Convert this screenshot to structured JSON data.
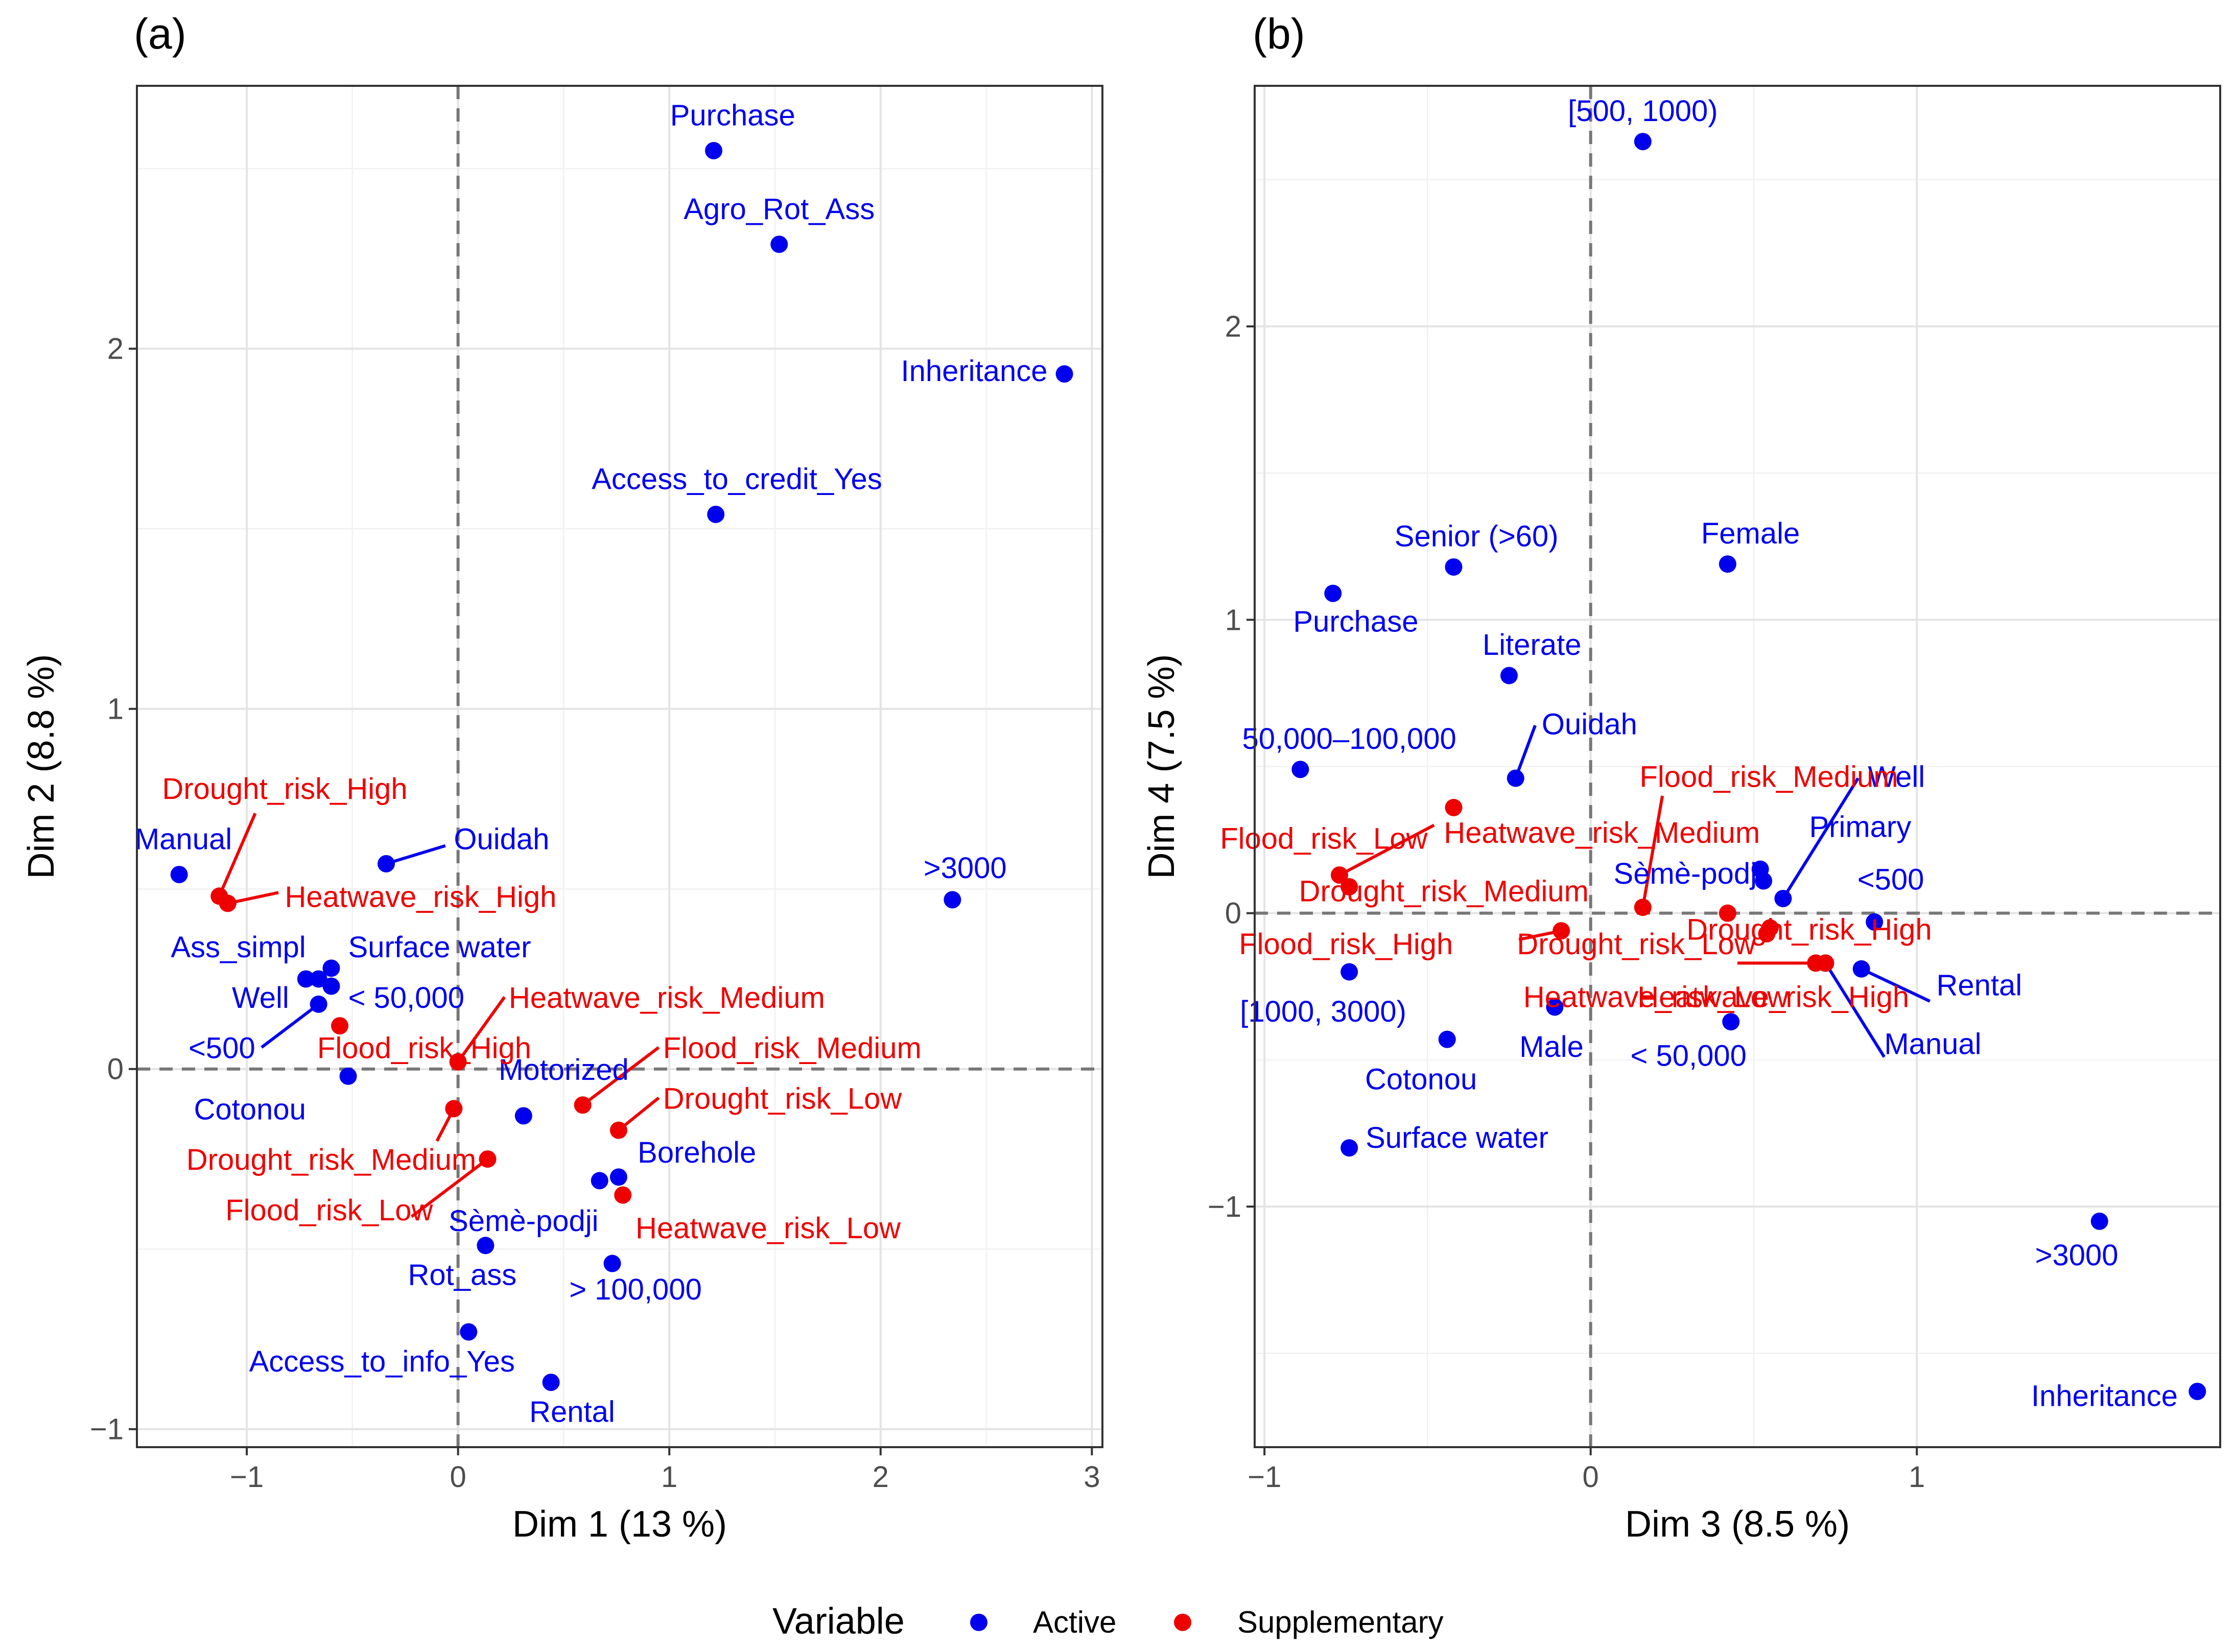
{
  "legend": {
    "title": "Variable",
    "items": [
      {
        "label": "Active",
        "color": "#0000ee"
      },
      {
        "label": "Supplementary",
        "color": "#ee0000"
      }
    ]
  },
  "chart_data": [
    {
      "type": "scatter",
      "tag": "(a)",
      "xlabel": "Dim 1 (13 %)",
      "ylabel": "Dim 2 (8.8 %)",
      "xlim": [
        -1.52,
        3.05
      ],
      "ylim": [
        -1.05,
        2.73
      ],
      "xticks": [
        -1,
        0,
        1,
        2,
        3
      ],
      "yticks": [
        -1,
        0,
        1,
        2
      ],
      "points": [
        {
          "label": "Purchase",
          "x": 1.21,
          "y": 2.55,
          "group": "Active",
          "lx": 1.3,
          "ly": 2.62,
          "anchor": "middle"
        },
        {
          "label": "Agro_Rot_Ass",
          "x": 1.52,
          "y": 2.29,
          "group": "Active",
          "lx": 1.52,
          "ly": 2.36,
          "anchor": "middle"
        },
        {
          "label": "Inheritance",
          "x": 2.87,
          "y": 1.93,
          "group": "Active",
          "lx": 2.79,
          "ly": 1.91,
          "anchor": "end"
        },
        {
          "label": "Access_to_credit_Yes",
          "x": 1.22,
          "y": 1.54,
          "group": "Active",
          "lx": 1.32,
          "ly": 1.61,
          "anchor": "middle"
        },
        {
          "label": "Manual",
          "x": -1.32,
          "y": 0.54,
          "group": "Active",
          "lx": -1.3,
          "ly": 0.61,
          "anchor": "middle"
        },
        {
          "label": "Ouidah",
          "x": -0.34,
          "y": 0.57,
          "group": "Active",
          "lx": -0.02,
          "ly": 0.61,
          "anchor": "start",
          "seg": [
            -0.06,
            0.62
          ]
        },
        {
          "label": ">3000",
          "x": 2.34,
          "y": 0.47,
          "group": "Active",
          "lx": 2.4,
          "ly": 0.53,
          "anchor": "middle"
        },
        {
          "label": "Ass_simpl",
          "x": -0.72,
          "y": 0.25,
          "group": "Active",
          "lx": -1.04,
          "ly": 0.31,
          "anchor": "middle"
        },
        {
          "label": "Surface water",
          "x": -0.6,
          "y": 0.28,
          "group": "Active",
          "lx": -0.52,
          "ly": 0.31,
          "anchor": "start"
        },
        {
          "label": "Well",
          "x": -0.66,
          "y": 0.25,
          "group": "Active",
          "lx": -0.8,
          "ly": 0.17,
          "anchor": "end"
        },
        {
          "label": "< 50,000",
          "x": -0.6,
          "y": 0.23,
          "group": "Active",
          "lx": -0.52,
          "ly": 0.17,
          "anchor": "start"
        },
        {
          "label": "<500",
          "x": -0.66,
          "y": 0.18,
          "group": "Active",
          "lx": -0.96,
          "ly": 0.03,
          "anchor": "end",
          "seg": [
            -0.93,
            0.06
          ]
        },
        {
          "label": "Cotonou",
          "x": -0.52,
          "y": -0.02,
          "group": "Active",
          "lx": -0.72,
          "ly": -0.14,
          "anchor": "end"
        },
        {
          "label": "Motorized",
          "x": 0.31,
          "y": -0.13,
          "group": "Active",
          "lx": 0.5,
          "ly": -0.03,
          "anchor": "middle"
        },
        {
          "label": "Borehole",
          "x": 0.76,
          "y": -0.3,
          "group": "Active",
          "lx": 0.85,
          "ly": -0.26,
          "anchor": "start"
        },
        {
          "label": "Sèmè-podji",
          "x": 0.67,
          "y": -0.31,
          "group": "Active",
          "lx": 0.31,
          "ly": -0.45,
          "anchor": "middle"
        },
        {
          "label": "Rot_ass",
          "x": 0.13,
          "y": -0.49,
          "group": "Active",
          "lx": 0.02,
          "ly": -0.6,
          "anchor": "middle"
        },
        {
          "label": "> 100,000",
          "x": 0.73,
          "y": -0.54,
          "group": "Active",
          "lx": 0.84,
          "ly": -0.64,
          "anchor": "middle"
        },
        {
          "label": "Access_to_info_Yes",
          "x": 0.05,
          "y": -0.73,
          "group": "Active",
          "lx": -0.36,
          "ly": -0.84,
          "anchor": "middle"
        },
        {
          "label": "Rental",
          "x": 0.44,
          "y": -0.87,
          "group": "Active",
          "lx": 0.54,
          "ly": -0.98,
          "anchor": "middle"
        },
        {
          "label": "Drought_risk_High",
          "x": -1.13,
          "y": 0.48,
          "group": "Supplementary",
          "lx": -0.82,
          "ly": 0.75,
          "anchor": "middle",
          "seg": [
            -0.96,
            0.71
          ]
        },
        {
          "label": "Heatwave_risk_High",
          "x": -1.09,
          "y": 0.46,
          "group": "Supplementary",
          "lx": -0.82,
          "ly": 0.45,
          "anchor": "start",
          "seg": [
            -0.85,
            0.49
          ]
        },
        {
          "label": "Heatwave_risk_Medium",
          "x": 0.0,
          "y": 0.02,
          "group": "Supplementary",
          "lx": 0.24,
          "ly": 0.17,
          "anchor": "start",
          "seg": [
            0.22,
            0.2
          ]
        },
        {
          "label": "Flood_risk_High",
          "x": -0.56,
          "y": 0.12,
          "group": "Supplementary",
          "lx": -0.16,
          "ly": 0.03,
          "anchor": "middle"
        },
        {
          "label": "Flood_risk_Medium",
          "x": 0.59,
          "y": -0.1,
          "group": "Supplementary",
          "lx": 0.97,
          "ly": 0.03,
          "anchor": "start",
          "seg": [
            0.95,
            0.06
          ]
        },
        {
          "label": "Drought_risk_Low",
          "x": 0.76,
          "y": -0.17,
          "group": "Supplementary",
          "lx": 0.97,
          "ly": -0.11,
          "anchor": "start",
          "seg": [
            0.95,
            -0.08
          ]
        },
        {
          "label": "Drought_risk_Medium",
          "x": -0.02,
          "y": -0.11,
          "group": "Supplementary",
          "lx": -0.6,
          "ly": -0.28,
          "anchor": "middle",
          "seg": [
            -0.1,
            -0.2
          ]
        },
        {
          "label": "Flood_risk_Low",
          "x": 0.14,
          "y": -0.25,
          "group": "Supplementary",
          "lx": -0.61,
          "ly": -0.42,
          "anchor": "middle",
          "seg": [
            -0.22,
            -0.41
          ]
        },
        {
          "label": "Heatwave_risk_Low",
          "x": 0.78,
          "y": -0.35,
          "group": "Supplementary",
          "lx": 0.84,
          "ly": -0.47,
          "anchor": "start"
        }
      ]
    },
    {
      "type": "scatter",
      "tag": "(b)",
      "xlabel": "Dim 3 (8.5 %)",
      "ylabel": "Dim 4 (7.5 %)",
      "xlim": [
        -1.03,
        1.93
      ],
      "ylim": [
        -1.82,
        2.82
      ],
      "xticks": [
        -1,
        0,
        1
      ],
      "yticks": [
        -1,
        0,
        1,
        2
      ],
      "points": [
        {
          "label": "[500, 1000)",
          "x": 0.16,
          "y": 2.63,
          "group": "Active",
          "lx": 0.16,
          "ly": 2.7,
          "anchor": "middle"
        },
        {
          "label": "Senior (>60)",
          "x": -0.42,
          "y": 1.18,
          "group": "Active",
          "lx": -0.35,
          "ly": 1.25,
          "anchor": "middle"
        },
        {
          "label": "Female",
          "x": 0.42,
          "y": 1.19,
          "group": "Active",
          "lx": 0.49,
          "ly": 1.26,
          "anchor": "middle"
        },
        {
          "label": "Purchase",
          "x": -0.79,
          "y": 1.09,
          "group": "Active",
          "lx": -0.72,
          "ly": 0.96,
          "anchor": "middle"
        },
        {
          "label": "Literate",
          "x": -0.25,
          "y": 0.81,
          "group": "Active",
          "lx": -0.18,
          "ly": 0.88,
          "anchor": "middle"
        },
        {
          "label": "Ouidah",
          "x": -0.23,
          "y": 0.46,
          "group": "Active",
          "lx": -0.15,
          "ly": 0.61,
          "anchor": "start",
          "seg": [
            -0.17,
            0.64
          ]
        },
        {
          "label": "50,000–100,000",
          "x": -0.89,
          "y": 0.49,
          "group": "Active",
          "lx": -0.74,
          "ly": 0.56,
          "anchor": "middle"
        },
        {
          "label": "Well",
          "x": 0.59,
          "y": 0.05,
          "group": "Active",
          "lx": 0.85,
          "ly": 0.43,
          "anchor": "start",
          "seg": [
            0.82,
            0.46
          ]
        },
        {
          "label": "Primary",
          "x": 0.52,
          "y": 0.15,
          "group": "Active",
          "lx": 0.67,
          "ly": 0.26,
          "anchor": "start"
        },
        {
          "label": "Sèmè-podji",
          "x": 0.53,
          "y": 0.11,
          "group": "Active",
          "lx": 0.3,
          "ly": 0.1,
          "anchor": "middle"
        },
        {
          "label": "<500",
          "x": 0.87,
          "y": -0.03,
          "group": "Active",
          "lx": 0.92,
          "ly": 0.08,
          "anchor": "middle"
        },
        {
          "label": "Rental",
          "x": 0.83,
          "y": -0.19,
          "group": "Active",
          "lx": 1.06,
          "ly": -0.28,
          "anchor": "start",
          "seg": [
            1.04,
            -0.3
          ]
        },
        {
          "label": "Manual",
          "x": 0.72,
          "y": -0.17,
          "group": "Active",
          "lx": 0.9,
          "ly": -0.48,
          "anchor": "start",
          "seg": [
            0.9,
            -0.49
          ]
        },
        {
          "label": "[1000, 3000)",
          "x": -0.74,
          "y": -0.2,
          "group": "Active",
          "lx": -0.82,
          "ly": -0.37,
          "anchor": "middle"
        },
        {
          "label": "Male",
          "x": -0.11,
          "y": -0.32,
          "group": "Active",
          "lx": -0.12,
          "ly": -0.49,
          "anchor": "middle"
        },
        {
          "label": "< 50,000",
          "x": 0.43,
          "y": -0.37,
          "group": "Active",
          "lx": 0.3,
          "ly": -0.52,
          "anchor": "middle"
        },
        {
          "label": "Cotonou",
          "x": -0.44,
          "y": -0.43,
          "group": "Active",
          "lx": -0.52,
          "ly": -0.6,
          "anchor": "middle"
        },
        {
          "label": "Surface water",
          "x": -0.74,
          "y": -0.8,
          "group": "Active",
          "lx": -0.69,
          "ly": -0.8,
          "anchor": "start"
        },
        {
          "label": ">3000",
          "x": 1.56,
          "y": -1.05,
          "group": "Active",
          "lx": 1.49,
          "ly": -1.2,
          "anchor": "middle"
        },
        {
          "label": "Inheritance",
          "x": 1.86,
          "y": -1.63,
          "group": "Active",
          "lx": 1.8,
          "ly": -1.68,
          "anchor": "end"
        },
        {
          "label": "Flood_risk_Medium",
          "x": 0.16,
          "y": 0.02,
          "group": "Supplementary",
          "lx": 0.15,
          "ly": 0.43,
          "anchor": "start",
          "seg": [
            0.22,
            0.4
          ]
        },
        {
          "label": "Heatwave_risk_Medium",
          "x": -0.42,
          "y": 0.36,
          "group": "Supplementary",
          "lx": -0.45,
          "ly": 0.24,
          "anchor": "start"
        },
        {
          "label": "Flood_risk_Low",
          "x": -0.77,
          "y": 0.13,
          "group": "Supplementary",
          "lx": -0.5,
          "ly": 0.22,
          "anchor": "end",
          "seg": [
            -0.48,
            0.3
          ]
        },
        {
          "label": "Drought_risk_Medium",
          "x": -0.74,
          "y": 0.09,
          "group": "Supplementary",
          "lx": -0.45,
          "ly": 0.04,
          "anchor": "middle"
        },
        {
          "label": "Flood_risk_High",
          "x": -0.09,
          "y": -0.06,
          "group": "Supplementary",
          "lx": -0.75,
          "ly": -0.14,
          "anchor": "middle",
          "seg": [
            -0.22,
            -0.09
          ]
        },
        {
          "label": "Drought_risk_Low",
          "x": 0.42,
          "y": 0.0,
          "group": "Supplementary",
          "lx": 0.14,
          "ly": -0.14,
          "anchor": "middle"
        },
        {
          "label": "Drought_risk_High",
          "x": 0.55,
          "y": -0.05,
          "group": "Supplementary",
          "lx": 0.67,
          "ly": -0.09,
          "anchor": "middle"
        },
        {
          "label": "Heatwave_risk_Low",
          "x": 0.54,
          "y": -0.07,
          "group": "Supplementary",
          "lx": 0.2,
          "ly": -0.32,
          "anchor": "middle"
        },
        {
          "label": "Heatwave_risk_High",
          "x": 0.72,
          "y": -0.17,
          "group": "Supplementary",
          "lx": 0.56,
          "ly": -0.32,
          "anchor": "middle",
          "seg": [
            0.45,
            -0.17
          ]
        },
        {
          "label": "",
          "x": 0.69,
          "y": -0.17,
          "group": "Supplementary"
        }
      ]
    }
  ]
}
